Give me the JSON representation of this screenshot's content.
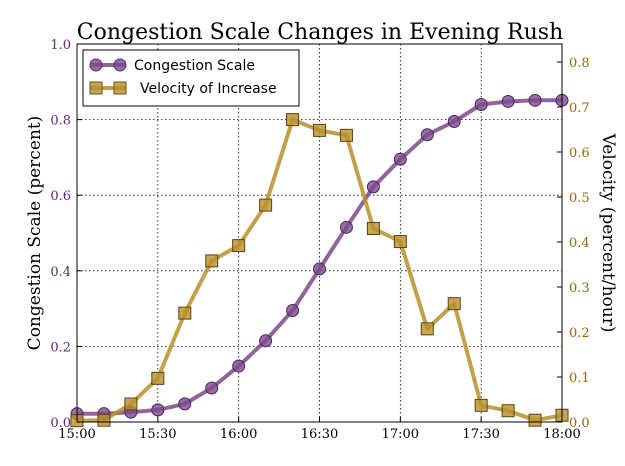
{
  "chart_data": {
    "type": "line",
    "title": "Congestion Scale Changes in Evening Rush",
    "ylabel": "Congestion Scale (percent)",
    "y2label": "Velocity (percent/hour)",
    "x_ticks": [
      "15:00",
      "15:30",
      "16:00",
      "16:30",
      "17:00",
      "17:30",
      "18:00"
    ],
    "y_ticks": [
      "0.0",
      "0.2",
      "0.4",
      "0.6",
      "0.8",
      "1.0"
    ],
    "y2_ticks": [
      "0.0",
      "0.1",
      "0.2",
      "0.3",
      "0.4",
      "0.5",
      "0.6",
      "0.7",
      "0.8"
    ],
    "xlim_minutes_of_day": [
      900,
      1080
    ],
    "ylim": [
      0,
      1.0
    ],
    "y2lim": [
      0,
      0.84
    ],
    "grid": true,
    "legend_position": "top-left",
    "x": [
      900,
      910,
      920,
      930,
      940,
      950,
      960,
      970,
      980,
      990,
      1000,
      1010,
      1020,
      1030,
      1040,
      1050,
      1060,
      1070,
      1080
    ],
    "series": [
      {
        "name": "Congestion Scale",
        "axis": "left",
        "color": "#7b4a8b",
        "marker": "circle",
        "values": [
          0.022,
          0.022,
          0.026,
          0.032,
          0.048,
          0.09,
          0.148,
          0.215,
          0.295,
          0.405,
          0.515,
          0.622,
          0.695,
          0.76,
          0.795,
          0.84,
          0.848,
          0.851,
          0.851
        ]
      },
      {
        "name": "Velocity of Increase",
        "axis": "right",
        "color": "#b8902c",
        "marker": "square",
        "values": [
          0.003,
          0.004,
          0.04,
          0.097,
          0.242,
          0.358,
          0.392,
          0.482,
          0.672,
          0.648,
          0.637,
          0.43,
          0.401,
          0.207,
          0.263,
          0.037,
          0.025,
          0.004,
          0.015
        ]
      }
    ]
  }
}
